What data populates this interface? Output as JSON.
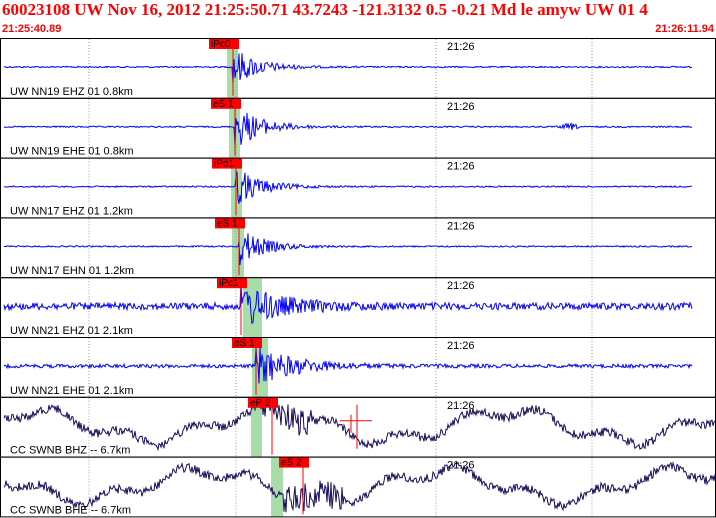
{
  "header": {
    "title": "60023108 UW Nov 16, 2012 21:25:50.71    43.7243 -121.3132  0.5 -0.21 Md le amyw UW 01    4",
    "start_time": "21:25:40.89",
    "end_time": "21:26:11.94"
  },
  "colors": {
    "header_text": "#ff0000",
    "trace_local": "#0000ff",
    "trace_regional": "#1a0a5a",
    "pick_box": "#ff0000",
    "window_shade": "#a8dca8",
    "panel_border": "#000000",
    "grid": "#9a9a9a"
  },
  "chart_data": {
    "type": "line",
    "minute_tick_label": "21:26",
    "panels": [
      {
        "station": "UW NN19 EHZ 01 0.8km",
        "pick": "iPc0",
        "color": "trace_local"
      },
      {
        "station": "UW NN19 EHE 01 0.8km",
        "pick": "eS 1",
        "color": "trace_local"
      },
      {
        "station": "UW NN17 EHZ 01 1.2km",
        "pick": "iPd1",
        "color": "trace_local"
      },
      {
        "station": "UW NN17 EHN 01 1.2km",
        "pick": "eS 1",
        "color": "trace_local"
      },
      {
        "station": "UW NN21 EHZ 01 2.1km",
        "pick": "iPc1",
        "color": "trace_local"
      },
      {
        "station": "UW NN21 EHE 01 2.1km",
        "pick": "eS 1",
        "color": "trace_local"
      },
      {
        "station": "CC SWNB BHZ -- 6.7km",
        "pick": "eP 2",
        "color": "trace_regional"
      },
      {
        "station": "CC SWNB BHE -- 6.7km",
        "pick": "eS 2",
        "color": "trace_regional"
      }
    ]
  }
}
